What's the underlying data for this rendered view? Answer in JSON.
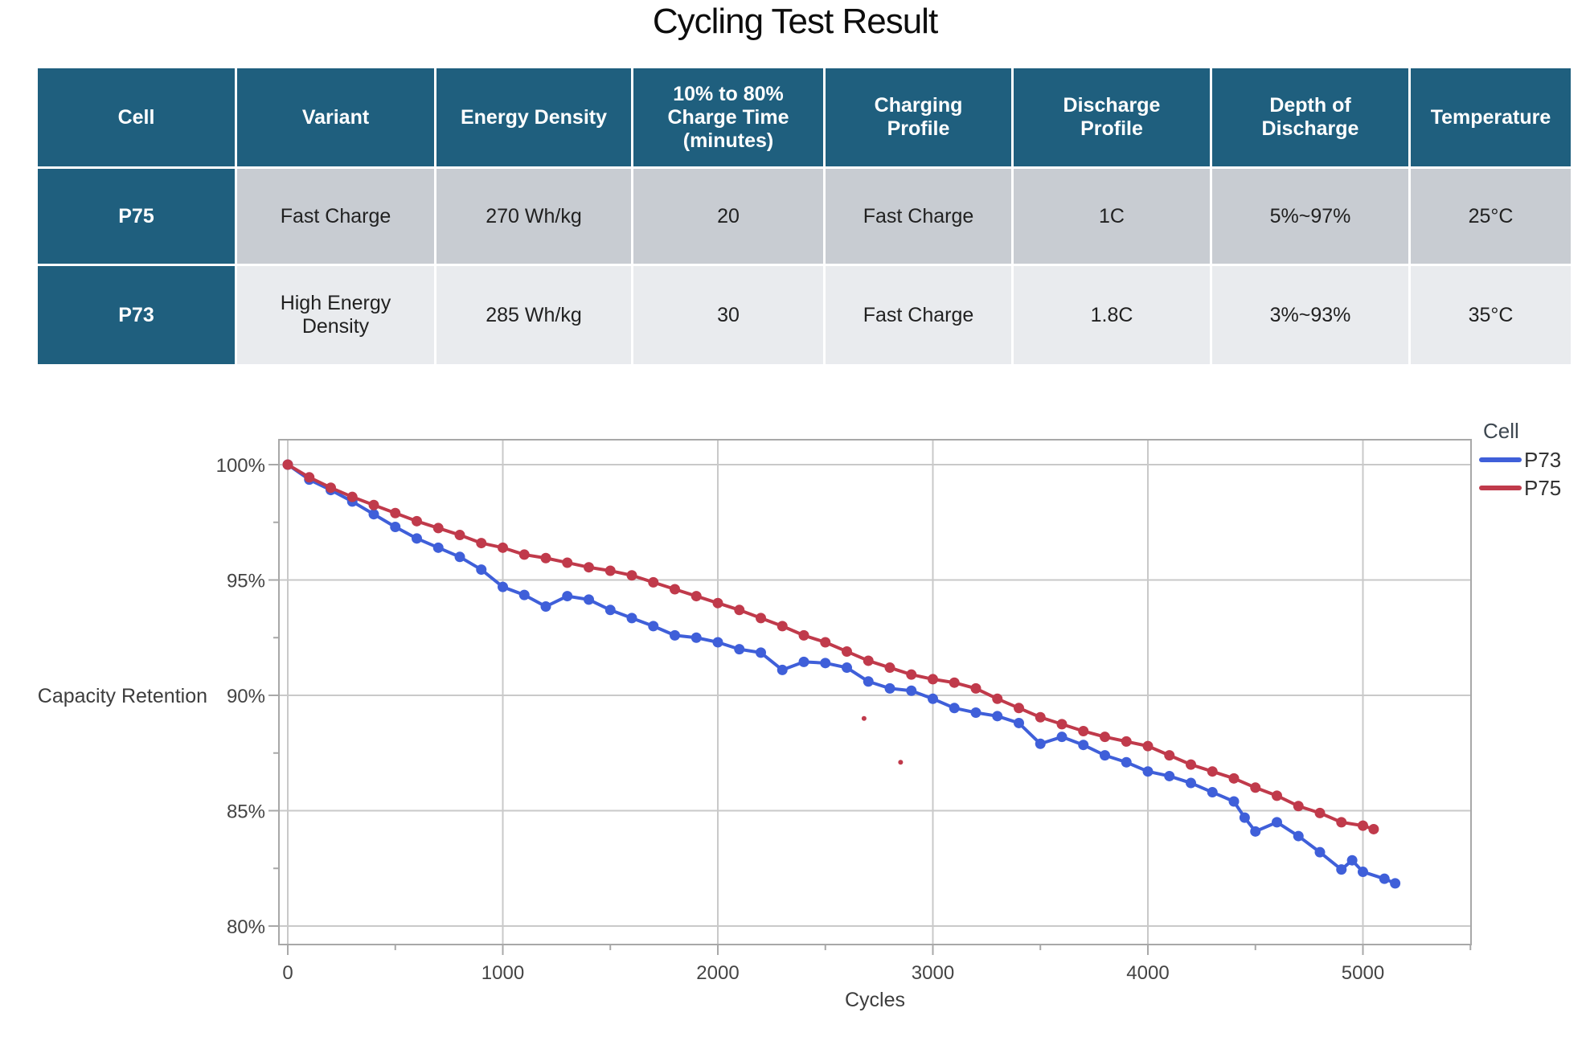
{
  "title": "Cycling Test Result",
  "table": {
    "columns": [
      "Cell",
      "Variant",
      "Energy Density",
      "10% to 80%\nCharge Time\n(minutes)",
      "Charging\nProfile",
      "Discharge\nProfile",
      "Depth of\nDischarge",
      "Temperature"
    ],
    "rows": [
      [
        "P75",
        "Fast Charge",
        "270 Wh/kg",
        "20",
        "Fast Charge",
        "1C",
        "5%~97%",
        "25°C"
      ],
      [
        "P73",
        "High Energy\nDensity",
        "285 Wh/kg",
        "30",
        "Fast Charge",
        "1.8C",
        "3%~93%",
        "35°C"
      ]
    ]
  },
  "chart_data": {
    "type": "line",
    "title": "",
    "xlabel": "Cycles",
    "ylabel": "Capacity Retention",
    "legend_title": "Cell",
    "legend_position": "top-right-outside",
    "grid": true,
    "xlim": [
      -40,
      5510
    ],
    "ylim": [
      79.2,
      101.1
    ],
    "x_ticks": [
      0,
      1000,
      2000,
      3000,
      4000,
      5000
    ],
    "x_minor_tick_step": 500,
    "y_ticks": [
      80,
      85,
      90,
      95,
      100
    ],
    "y_tick_suffix": "%",
    "y_minor_tick_step": 2.5,
    "series": [
      {
        "name": "P73",
        "color": "#3F5FD9",
        "points": [
          [
            0,
            100
          ],
          [
            100,
            99.35
          ],
          [
            200,
            98.9
          ],
          [
            300,
            98.4
          ],
          [
            400,
            97.85
          ],
          [
            500,
            97.3
          ],
          [
            600,
            96.8
          ],
          [
            700,
            96.4
          ],
          [
            800,
            96.0
          ],
          [
            900,
            95.45
          ],
          [
            1000,
            94.7
          ],
          [
            1100,
            94.35
          ],
          [
            1200,
            93.85
          ],
          [
            1300,
            94.3
          ],
          [
            1400,
            94.15
          ],
          [
            1500,
            93.7
          ],
          [
            1600,
            93.35
          ],
          [
            1700,
            93.0
          ],
          [
            1800,
            92.6
          ],
          [
            1900,
            92.5
          ],
          [
            2000,
            92.3
          ],
          [
            2100,
            92.0
          ],
          [
            2200,
            91.85
          ],
          [
            2300,
            91.1
          ],
          [
            2400,
            91.45
          ],
          [
            2500,
            91.4
          ],
          [
            2600,
            91.2
          ],
          [
            2700,
            90.6
          ],
          [
            2800,
            90.3
          ],
          [
            2900,
            90.2
          ],
          [
            3000,
            89.85
          ],
          [
            3100,
            89.45
          ],
          [
            3200,
            89.25
          ],
          [
            3300,
            89.1
          ],
          [
            3400,
            88.8
          ],
          [
            3500,
            87.9
          ],
          [
            3600,
            88.2
          ],
          [
            3700,
            87.85
          ],
          [
            3800,
            87.4
          ],
          [
            3900,
            87.1
          ],
          [
            4000,
            86.7
          ],
          [
            4100,
            86.5
          ],
          [
            4200,
            86.2
          ],
          [
            4300,
            85.8
          ],
          [
            4400,
            85.4
          ],
          [
            4450,
            84.7
          ],
          [
            4500,
            84.1
          ],
          [
            4600,
            84.5
          ],
          [
            4700,
            83.9
          ],
          [
            4800,
            83.2
          ],
          [
            4900,
            82.45
          ],
          [
            4950,
            82.85
          ],
          [
            5000,
            82.35
          ],
          [
            5100,
            82.05
          ],
          [
            5150,
            81.85
          ]
        ]
      },
      {
        "name": "P75",
        "color": "#C03A4B",
        "points": [
          [
            0,
            100
          ],
          [
            100,
            99.45
          ],
          [
            200,
            99.0
          ],
          [
            300,
            98.6
          ],
          [
            400,
            98.25
          ],
          [
            500,
            97.9
          ],
          [
            600,
            97.55
          ],
          [
            700,
            97.25
          ],
          [
            800,
            96.95
          ],
          [
            900,
            96.6
          ],
          [
            1000,
            96.4
          ],
          [
            1100,
            96.1
          ],
          [
            1200,
            95.95
          ],
          [
            1300,
            95.75
          ],
          [
            1400,
            95.55
          ],
          [
            1500,
            95.4
          ],
          [
            1600,
            95.2
          ],
          [
            1700,
            94.9
          ],
          [
            1800,
            94.6
          ],
          [
            1900,
            94.3
          ],
          [
            2000,
            94.0
          ],
          [
            2100,
            93.7
          ],
          [
            2200,
            93.35
          ],
          [
            2300,
            93.0
          ],
          [
            2400,
            92.6
          ],
          [
            2500,
            92.3
          ],
          [
            2600,
            91.9
          ],
          [
            2700,
            91.5
          ],
          [
            2800,
            91.2
          ],
          [
            2900,
            90.9
          ],
          [
            3000,
            90.7
          ],
          [
            3100,
            90.55
          ],
          [
            3200,
            90.3
          ],
          [
            3300,
            89.85
          ],
          [
            3400,
            89.45
          ],
          [
            3500,
            89.05
          ],
          [
            3600,
            88.75
          ],
          [
            3700,
            88.45
          ],
          [
            3800,
            88.2
          ],
          [
            3900,
            88.0
          ],
          [
            4000,
            87.8
          ],
          [
            4100,
            87.4
          ],
          [
            4200,
            87.0
          ],
          [
            4300,
            86.7
          ],
          [
            4400,
            86.4
          ],
          [
            4500,
            86.0
          ],
          [
            4600,
            85.65
          ],
          [
            4700,
            85.2
          ],
          [
            4800,
            84.9
          ],
          [
            4900,
            84.5
          ],
          [
            5000,
            84.35
          ],
          [
            5050,
            84.2
          ]
        ],
        "stray_points": [
          [
            2680,
            89.0
          ],
          [
            2850,
            87.1
          ]
        ]
      }
    ]
  },
  "colors": {
    "header_teal": "#1F5F7E",
    "row1_gray": "#C8CCD2",
    "row2_gray": "#E9EBEE",
    "p73_blue": "#3F5FD9",
    "p75_red": "#C03A4B",
    "gridline": "#C9C9C9",
    "axis_line": "#A8A8A8",
    "tick_text": "#444444"
  }
}
